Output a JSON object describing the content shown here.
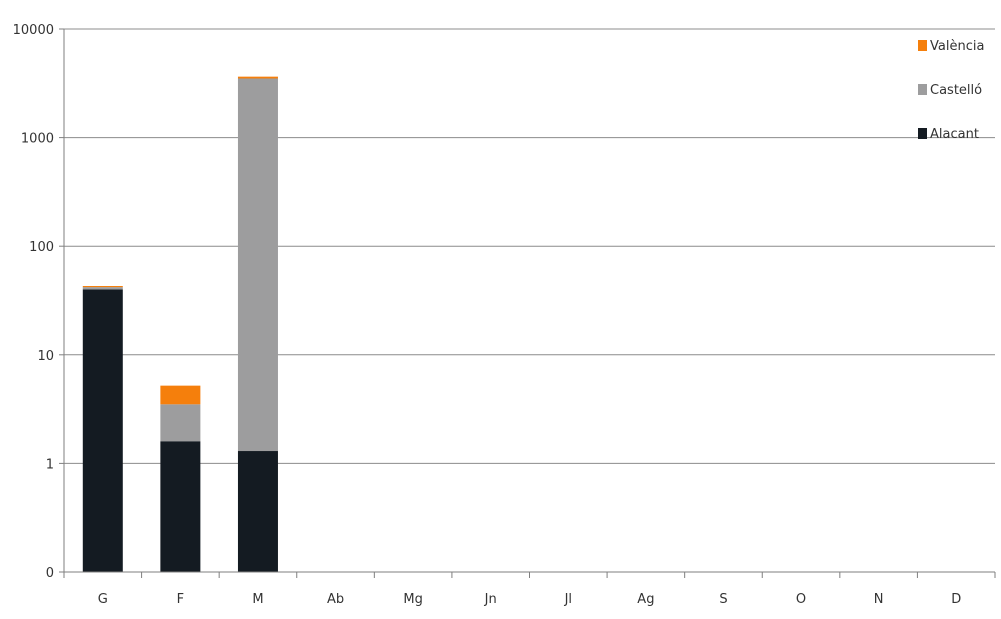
{
  "chart_data": {
    "type": "bar",
    "stacked": true,
    "y_scale": "log",
    "title": "",
    "xlabel": "",
    "ylabel": "",
    "ylim": [
      0.1,
      10000
    ],
    "y_ticks": [
      {
        "value": 0.1,
        "label": "0"
      },
      {
        "value": 1,
        "label": "1"
      },
      {
        "value": 10,
        "label": "10"
      },
      {
        "value": 100,
        "label": "100"
      },
      {
        "value": 1000,
        "label": "1000"
      },
      {
        "value": 10000,
        "label": "10000"
      }
    ],
    "grid": true,
    "legend_position": "top-right",
    "categories": [
      "G",
      "F",
      "M",
      "Ab",
      "Mg",
      "Jn",
      "Jl",
      "Ag",
      "S",
      "O",
      "N",
      "D"
    ],
    "series": [
      {
        "name": "Alacant",
        "color": "#141b22",
        "values": [
          40,
          1.6,
          1.3,
          null,
          null,
          null,
          null,
          null,
          null,
          null,
          null,
          null
        ]
      },
      {
        "name": "Castelló",
        "color": "#9d9d9e",
        "values": [
          2,
          1.9,
          3500,
          null,
          null,
          null,
          null,
          null,
          null,
          null,
          null,
          null
        ]
      },
      {
        "name": "València",
        "color": "#f57f0c",
        "values": [
          1,
          1.7,
          140,
          null,
          null,
          null,
          null,
          null,
          null,
          null,
          null,
          null
        ]
      }
    ],
    "legend_order": [
      "València",
      "Castelló",
      "Alacant"
    ],
    "axis_color": "#7f7f7f",
    "grid_color": "#8c8c8c"
  }
}
